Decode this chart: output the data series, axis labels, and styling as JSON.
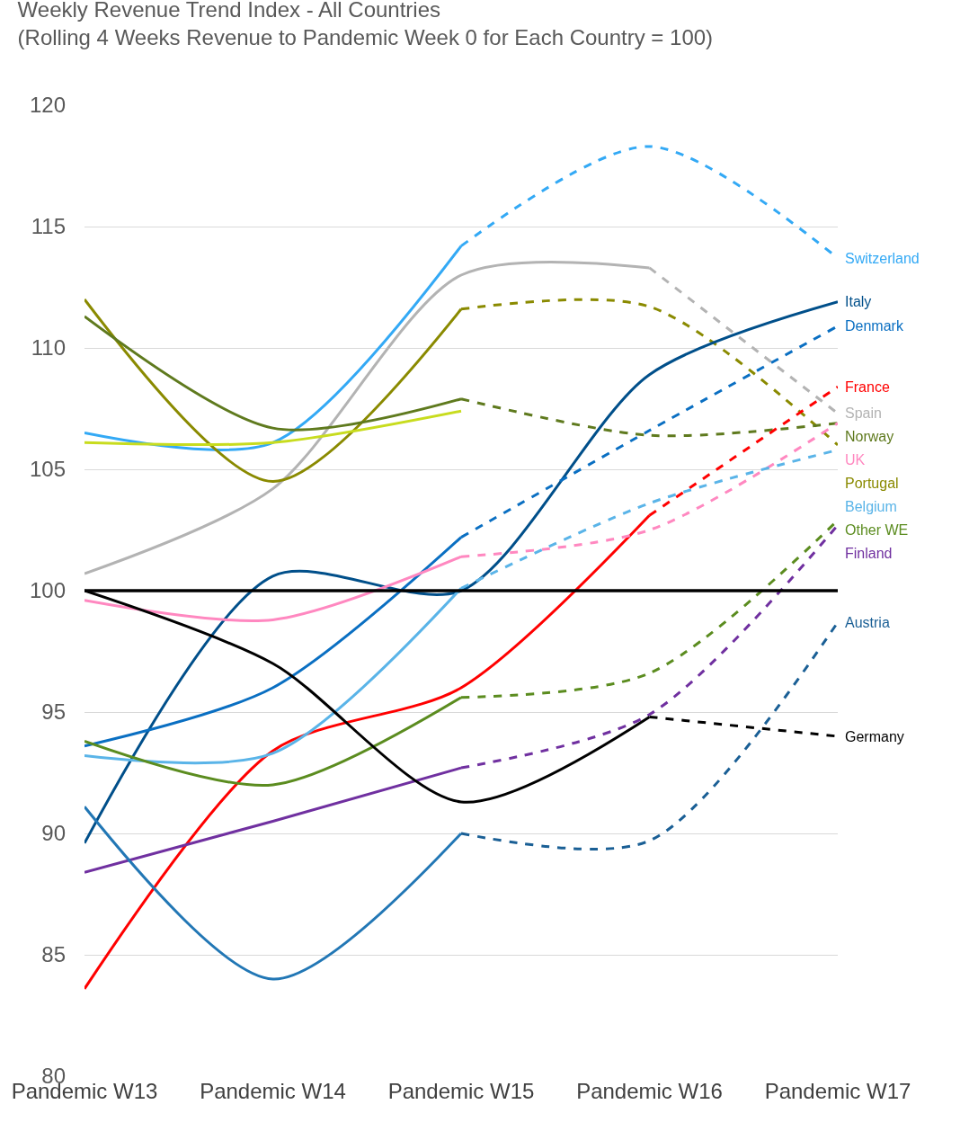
{
  "chart_data": {
    "type": "line",
    "title": "Weekly Revenue Trend Index - All Countries",
    "subtitle": "(Rolling 4 Weeks Revenue to Pandemic Week 0 for Each Country = 100)",
    "categories": [
      "Pandemic W13",
      "Pandemic W14",
      "Pandemic W15",
      "Pandemic W16",
      "Pandemic W17"
    ],
    "ylim": [
      80,
      120
    ],
    "yticks": [
      80,
      85,
      90,
      95,
      100,
      105,
      110,
      115,
      120
    ],
    "grid": "y",
    "legend": false,
    "marker": "none",
    "ref_lines": [
      {
        "axis": "y",
        "value": 100,
        "color": "#000000"
      }
    ],
    "series": [
      {
        "color": "#33a9f5",
        "line_style": "solid",
        "values": [
          106.5,
          106.1,
          114.2,
          null,
          null
        ]
      },
      {
        "name": "Switzerland",
        "color": "#33a9f5",
        "line_style": "dashed",
        "values": [
          null,
          null,
          114.2,
          118.3,
          113.7
        ]
      },
      {
        "color": "#b3b3b3",
        "line_style": "solid",
        "values": [
          100.7,
          104.2,
          113.0,
          113.3,
          null
        ]
      },
      {
        "name": "Spain",
        "color": "#b3b3b3",
        "line_style": "dashed",
        "values": [
          null,
          null,
          null,
          113.3,
          107.3
        ]
      },
      {
        "color": "#8a8a00",
        "line_style": "solid",
        "values": [
          112.0,
          104.5,
          111.6,
          null,
          null
        ]
      },
      {
        "name": "Portugal",
        "color": "#8a8a00",
        "line_style": "dashed",
        "values": [
          null,
          null,
          111.6,
          111.7,
          106.0
        ]
      },
      {
        "color": "#5f7a1e",
        "line_style": "solid",
        "values": [
          111.3,
          106.7,
          107.9,
          null,
          null
        ]
      },
      {
        "name": "Norway",
        "color": "#5f7a1e",
        "line_style": "dashed",
        "values": [
          null,
          null,
          107.9,
          106.4,
          106.9
        ]
      },
      {
        "color": "#c8dc1e",
        "line_style": "solid",
        "values": [
          106.1,
          106.1,
          107.4,
          null,
          null
        ]
      },
      {
        "name": "Italy",
        "color": "#004f8a",
        "line_style": "solid",
        "values": [
          89.6,
          100.6,
          100.0,
          108.9,
          111.9
        ]
      },
      {
        "color": "#0a6fc2",
        "line_style": "solid",
        "values": [
          93.6,
          96.0,
          102.2,
          null,
          null
        ]
      },
      {
        "name": "Denmark",
        "color": "#0a6fc2",
        "line_style": "dashed",
        "values": [
          null,
          null,
          102.2,
          106.6,
          110.9
        ]
      },
      {
        "color": "#ff0000",
        "line_style": "solid",
        "values": [
          83.6,
          93.4,
          96.0,
          103.1,
          null
        ]
      },
      {
        "name": "France",
        "color": "#ff0000",
        "line_style": "dashed",
        "values": [
          null,
          null,
          null,
          103.1,
          108.4
        ]
      },
      {
        "color": "#ff88c0",
        "line_style": "solid",
        "values": [
          99.6,
          98.8,
          101.4,
          null,
          null
        ]
      },
      {
        "name": "UK",
        "color": "#ff88c0",
        "line_style": "dashed",
        "values": [
          null,
          null,
          101.4,
          102.5,
          106.9
        ]
      },
      {
        "color": "#5ab4e8",
        "line_style": "solid",
        "values": [
          93.2,
          93.3,
          100.1,
          null,
          null
        ]
      },
      {
        "name": "Belgium",
        "color": "#5ab4e8",
        "line_style": "dashed",
        "values": [
          null,
          null,
          100.1,
          103.6,
          105.8
        ]
      },
      {
        "color": "#5b8c1f",
        "line_style": "solid",
        "values": [
          93.8,
          92.0,
          95.6,
          null,
          null
        ]
      },
      {
        "name": "Other WE",
        "color": "#5b8c1f",
        "line_style": "dashed",
        "values": [
          null,
          null,
          95.6,
          96.6,
          102.9
        ]
      },
      {
        "color": "#7030a0",
        "line_style": "solid",
        "values": [
          88.4,
          90.5,
          92.7,
          null,
          null
        ]
      },
      {
        "name": "Finland",
        "color": "#7030a0",
        "line_style": "dashed",
        "values": [
          null,
          null,
          92.7,
          94.9,
          102.7
        ]
      },
      {
        "color": "#2277b5",
        "line_style": "solid",
        "values": [
          91.1,
          84.0,
          90.0,
          null,
          null
        ]
      },
      {
        "name": "Austria",
        "color": "#1a5f95",
        "line_style": "dashed",
        "values": [
          null,
          null,
          90.0,
          89.7,
          98.7
        ]
      },
      {
        "color": "#000000",
        "line_style": "solid",
        "values": [
          100.0,
          97.0,
          91.3,
          94.8,
          null
        ]
      },
      {
        "name": "Germany",
        "color": "#000000",
        "line_style": "dashed",
        "values": [
          null,
          null,
          null,
          94.8,
          94.0
        ]
      }
    ]
  }
}
